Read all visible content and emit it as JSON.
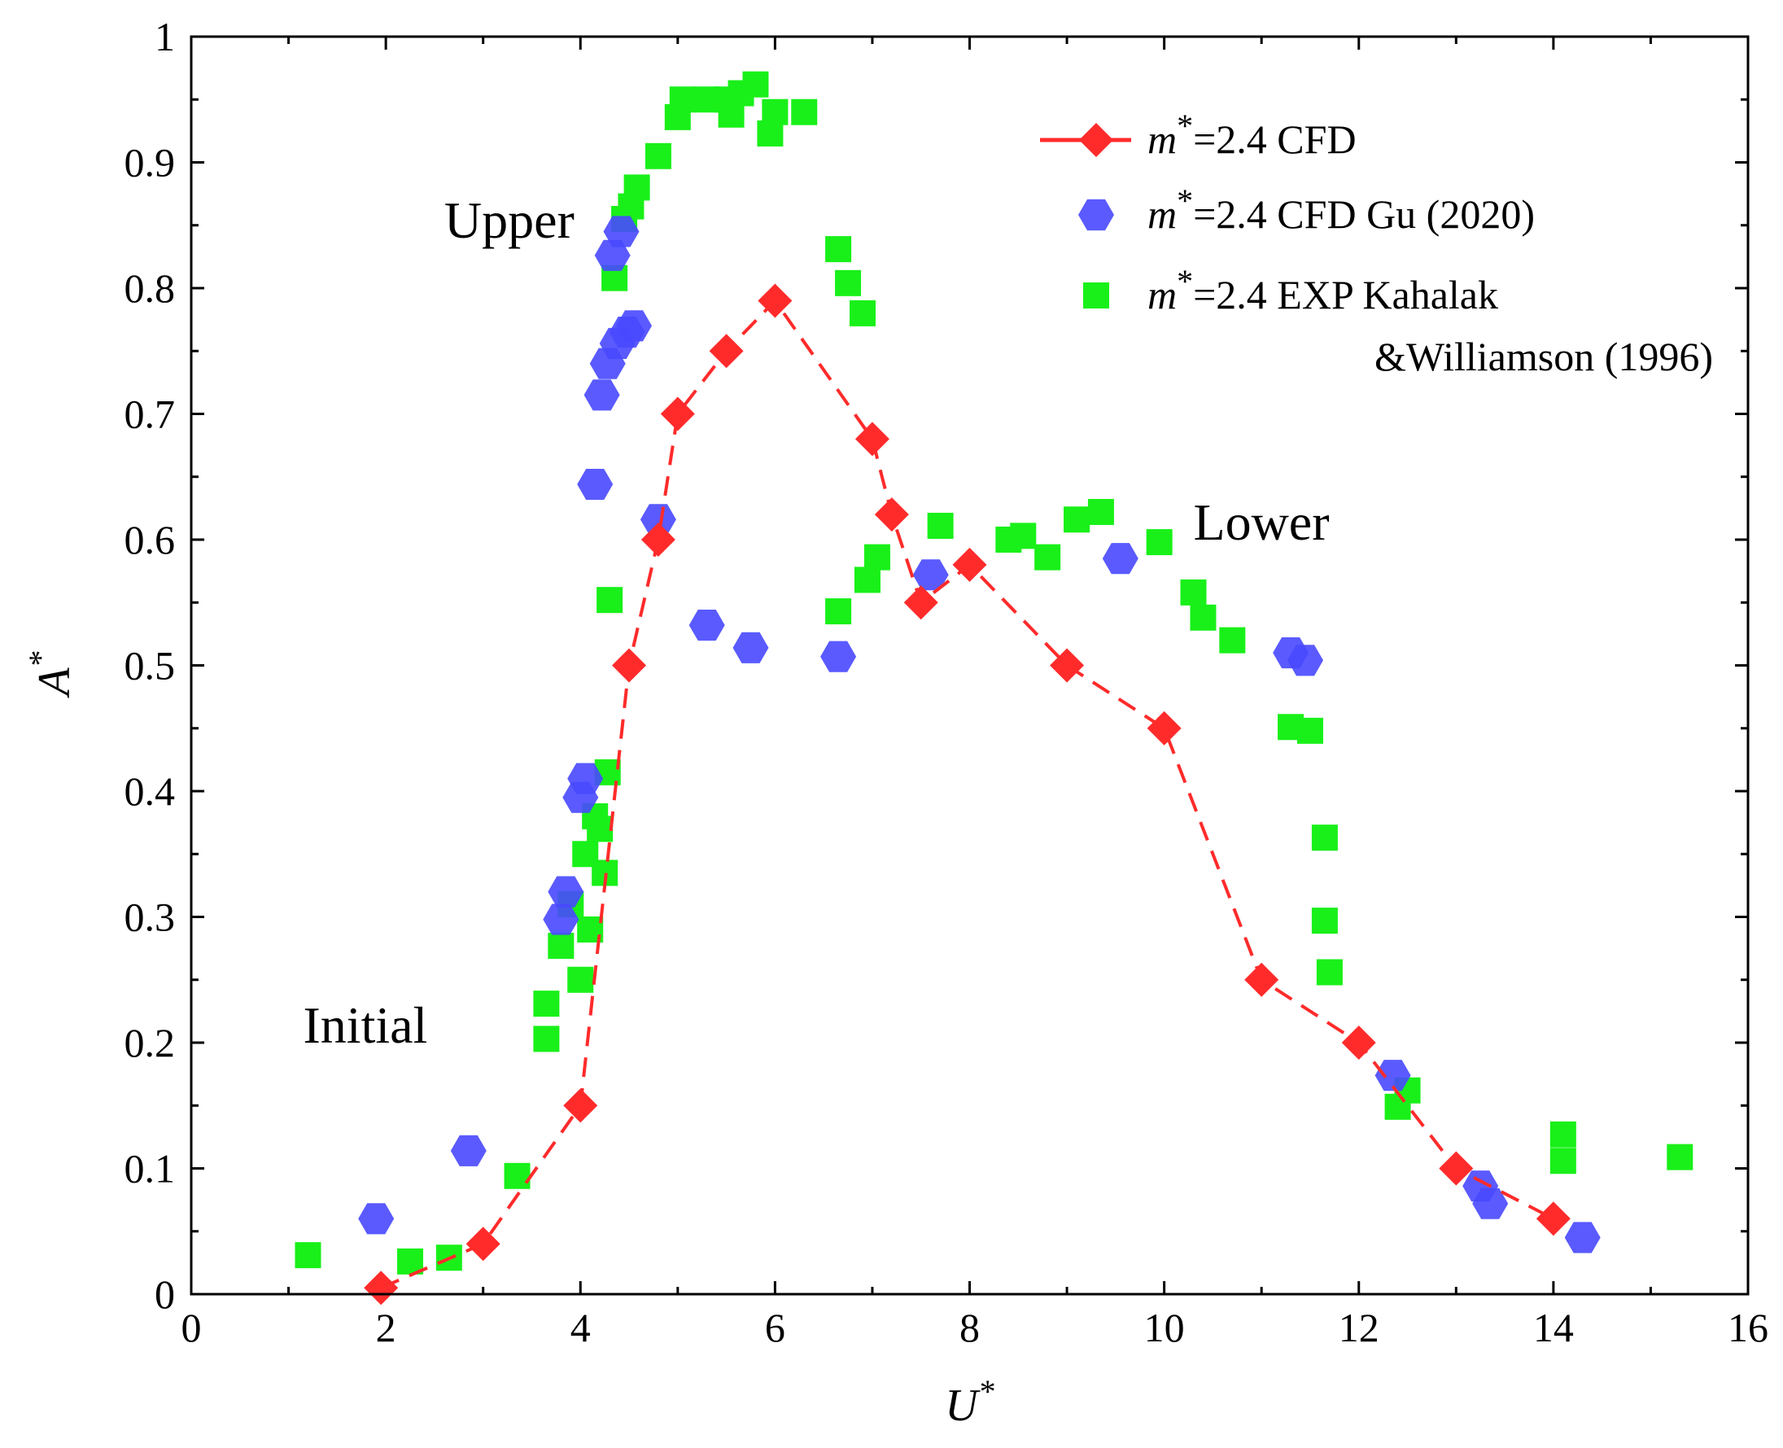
{
  "chart_data": {
    "type": "scatter",
    "title": "",
    "xlabel": "U*",
    "ylabel": "A*",
    "xlim": [
      0,
      16
    ],
    "ylim": [
      0,
      1
    ],
    "x_ticks": [
      "0",
      "2",
      "4",
      "6",
      "8",
      "10",
      "12",
      "14",
      "16"
    ],
    "y_ticks": [
      "0",
      "0.1",
      "0.2",
      "0.3",
      "0.4",
      "0.5",
      "0.6",
      "0.7",
      "0.8",
      "0.9",
      "1"
    ],
    "legend_position": "top-right",
    "annotations": [
      {
        "text": "Upper",
        "x": 2.6,
        "y": 0.84
      },
      {
        "text": "Lower",
        "x": 10.3,
        "y": 0.6
      },
      {
        "text": "Initial",
        "x": 1.15,
        "y": 0.2
      }
    ],
    "series": [
      {
        "name": "m*=2.4 CFD",
        "legend_label": "=2.4 CFD",
        "marker": "diamond",
        "line": "dashed",
        "color": "#ff2b2b",
        "x": [
          1.95,
          3.0,
          4.0,
          4.5,
          4.8,
          5.0,
          5.5,
          6.0,
          7.0,
          7.2,
          7.5,
          8.0,
          9.0,
          10.0,
          11.0,
          12.0,
          13.0,
          14.0
        ],
        "y": [
          0.005,
          0.04,
          0.15,
          0.5,
          0.6,
          0.7,
          0.75,
          0.79,
          0.68,
          0.62,
          0.55,
          0.58,
          0.5,
          0.45,
          0.25,
          0.2,
          0.1,
          0.06
        ]
      },
      {
        "name": "m*=2.4 CFD Gu (2020)",
        "legend_label": "=2.4 CFD Gu (2020)",
        "marker": "hexagon",
        "color": "#4848ff",
        "x": [
          1.9,
          2.85,
          3.8,
          3.85,
          4.0,
          4.05,
          4.15,
          4.22,
          4.28,
          4.33,
          4.38,
          4.42,
          4.48,
          4.55,
          4.8,
          5.3,
          5.75,
          6.65,
          7.6,
          9.55,
          11.3,
          11.45,
          12.35,
          13.25,
          13.35,
          14.3
        ],
        "y": [
          0.06,
          0.114,
          0.298,
          0.32,
          0.395,
          0.41,
          0.644,
          0.715,
          0.74,
          0.826,
          0.756,
          0.845,
          0.765,
          0.77,
          0.616,
          0.532,
          0.514,
          0.507,
          0.572,
          0.585,
          0.51,
          0.504,
          0.174,
          0.086,
          0.072,
          0.045
        ]
      },
      {
        "name": "m*=2.4 EXP Kahalak &Williamson (1996)",
        "legend_label": "=2.4 EXP Kahalak",
        "legend_label_2": "&Williamson  (1996)",
        "marker": "square",
        "color": "#19f019",
        "x": [
          1.2,
          2.25,
          2.65,
          3.35,
          3.65,
          3.65,
          3.8,
          3.9,
          4.0,
          4.05,
          4.1,
          4.15,
          4.2,
          4.25,
          4.28,
          4.3,
          4.35,
          4.45,
          4.52,
          4.58,
          4.8,
          5.0,
          5.05,
          5.3,
          5.5,
          5.55,
          5.65,
          5.8,
          5.95,
          6.0,
          6.3,
          6.65,
          6.75,
          6.9,
          6.65,
          6.95,
          7.05,
          7.7,
          8.4,
          8.55,
          8.8,
          9.1,
          9.35,
          9.95,
          10.3,
          10.4,
          10.7,
          11.3,
          11.5,
          11.65,
          11.65,
          11.7,
          12.4,
          12.5,
          14.1,
          14.1,
          15.3
        ],
        "y": [
          0.031,
          0.026,
          0.029,
          0.094,
          0.203,
          0.231,
          0.277,
          0.31,
          0.25,
          0.35,
          0.29,
          0.38,
          0.37,
          0.335,
          0.415,
          0.552,
          0.808,
          0.855,
          0.865,
          0.88,
          0.905,
          0.936,
          0.95,
          0.95,
          0.95,
          0.938,
          0.955,
          0.962,
          0.923,
          0.94,
          0.94,
          0.831,
          0.804,
          0.78,
          0.543,
          0.568,
          0.586,
          0.611,
          0.6,
          0.603,
          0.586,
          0.616,
          0.622,
          0.598,
          0.558,
          0.538,
          0.52,
          0.451,
          0.448,
          0.363,
          0.297,
          0.256,
          0.149,
          0.162,
          0.127,
          0.106,
          0.109
        ]
      }
    ]
  }
}
